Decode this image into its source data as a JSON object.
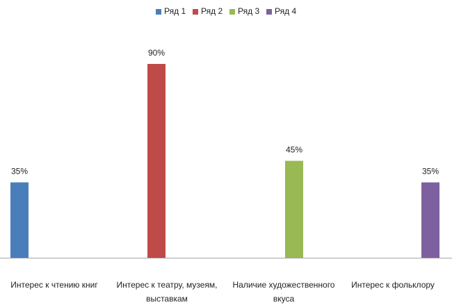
{
  "chart_data": {
    "type": "bar",
    "title": "",
    "xlabel": "",
    "ylabel": "",
    "ylim": [
      0,
      100
    ],
    "grid": false,
    "legend_position": "top",
    "value_format": "percent",
    "categories": [
      "Интерес к чтению книг",
      "Интерес к театру, музеям, выставкам",
      "Наличие художественного вкуса",
      "Интерес к фольклору"
    ],
    "series": [
      {
        "name": "Ряд 1",
        "color": "#4a7ebb",
        "values": [
          35,
          null,
          null,
          null
        ]
      },
      {
        "name": "Ряд 2",
        "color": "#be4b48",
        "values": [
          null,
          90,
          null,
          null
        ]
      },
      {
        "name": "Ряд 3",
        "color": "#98b954",
        "values": [
          null,
          null,
          45,
          null
        ]
      },
      {
        "name": "Ряд 4",
        "color": "#7d60a0",
        "values": [
          null,
          null,
          null,
          35
        ]
      }
    ]
  }
}
